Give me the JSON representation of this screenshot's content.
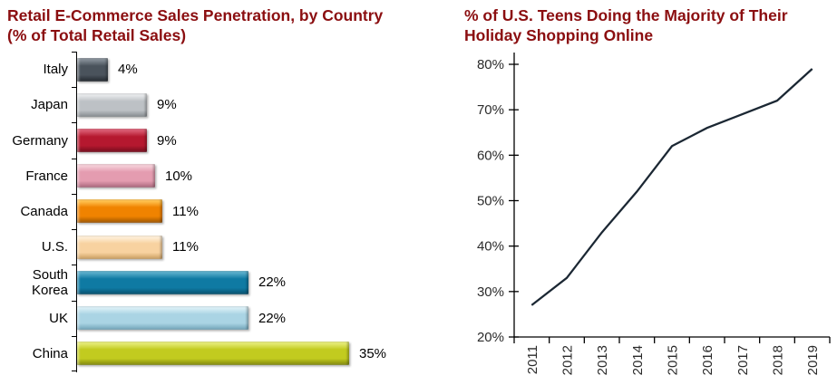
{
  "page": {
    "background": "#ffffff",
    "title_color": "#8B0E10"
  },
  "left_chart": {
    "title_lines": [
      "Retail E-Commerce Sales Penetration, by Country",
      "(% of Total Retail Sales)"
    ]
  },
  "right_chart": {
    "title_lines": [
      "% of U.S. Teens Doing the Majority of Their",
      "Holiday Shopping Online"
    ]
  },
  "chart_data": [
    {
      "type": "bar",
      "orientation": "horizontal",
      "title": "Retail E-Commerce Sales Penetration, by Country (% of Total Retail Sales)",
      "categories": [
        "Italy",
        "Japan",
        "Germany",
        "France",
        "Canada",
        "U.S.",
        "South Korea",
        "UK",
        "China"
      ],
      "values": [
        4,
        9,
        9,
        10,
        11,
        11,
        22,
        22,
        35
      ],
      "value_labels": [
        "4%",
        "9%",
        "9%",
        "10%",
        "11%",
        "11%",
        "22%",
        "22%",
        "35%"
      ],
      "xlim": [
        0,
        35
      ],
      "grid": false,
      "axis_color": "#000000",
      "bar_colors": [
        {
          "face": "#4a535c",
          "light": "#828b94",
          "dark": "#22282e"
        },
        {
          "face": "#bdc1c5",
          "light": "#e6e8ea",
          "dark": "#84898d"
        },
        {
          "face": "#b5182f",
          "light": "#d9596f",
          "dark": "#720c1c"
        },
        {
          "face": "#e49cb0",
          "light": "#f4ccd6",
          "dark": "#a8657a"
        },
        {
          "face": "#f08300",
          "light": "#ffc04d",
          "dark": "#9c5400"
        },
        {
          "face": "#f8d2a0",
          "light": "#feeed6",
          "dark": "#c99c5e"
        },
        {
          "face": "#0f7aa3",
          "light": "#57abc9",
          "dark": "#074e6b"
        },
        {
          "face": "#aad4e4",
          "light": "#d8eef5",
          "dark": "#6fa3b8"
        },
        {
          "face": "#c2cb1f",
          "light": "#e4ea72",
          "dark": "#7f860c"
        }
      ]
    },
    {
      "type": "line",
      "title": "% of U.S. Teens Doing the Majority of Their Holiday Shopping Online",
      "x": [
        "2011",
        "2012",
        "2013",
        "2014",
        "2015",
        "2016",
        "2017",
        "2018",
        "2019"
      ],
      "values": [
        27,
        33,
        43,
        52,
        62,
        66,
        69,
        72,
        79
      ],
      "ylim": [
        20,
        80
      ],
      "ytick_step": 10,
      "ytick_labels": [
        "20%",
        "30%",
        "40%",
        "50%",
        "60%",
        "70%",
        "80%"
      ],
      "line_color": "#1b2733",
      "axis_color": "#000000",
      "tick_label_color": "#2b2b2b",
      "grid": false,
      "legend": null
    }
  ]
}
